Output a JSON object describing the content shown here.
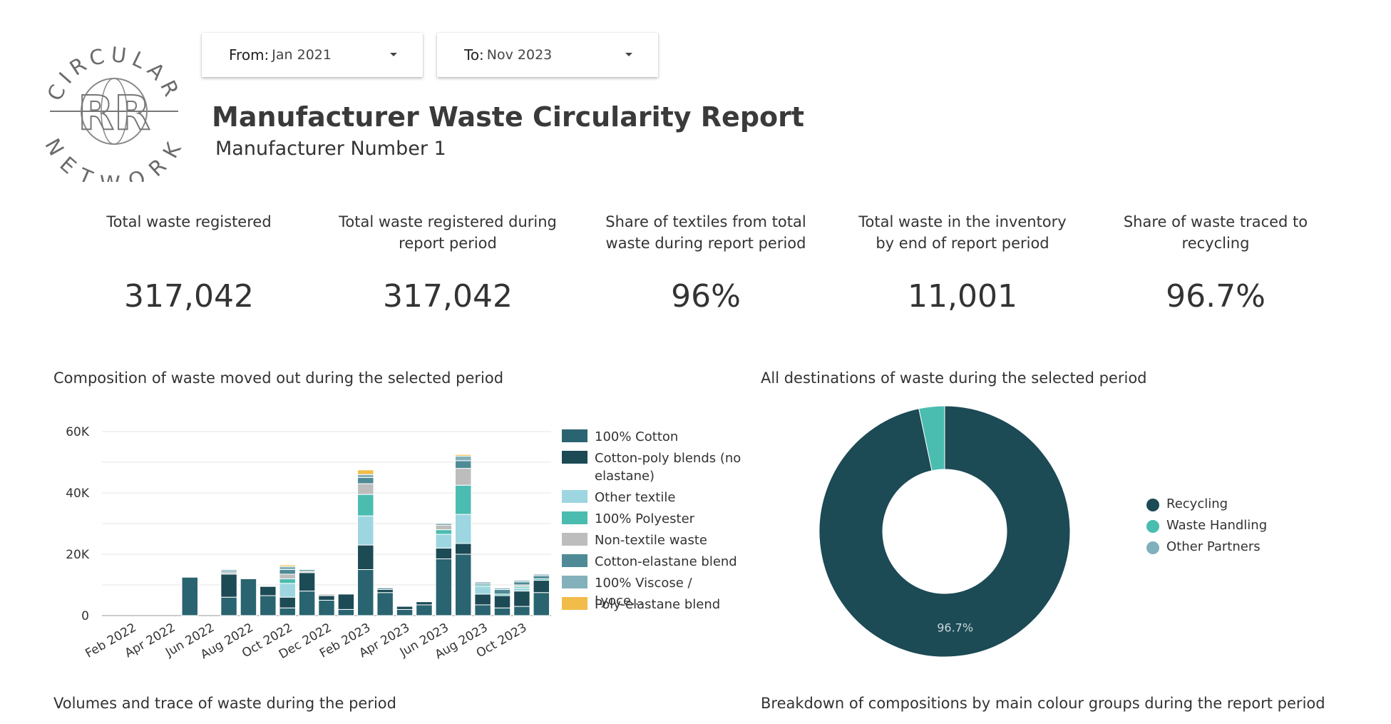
{
  "logo": {
    "top_text": "CIRCULAR",
    "bottom_text": "NETWORK",
    "monogram": "RR"
  },
  "filters": {
    "from": {
      "label": "From:",
      "value": "Jan 2021"
    },
    "to": {
      "label": "To:",
      "value": "Nov 2023"
    }
  },
  "header": {
    "title": "Manufacturer Waste Circularity Report",
    "subtitle": "Manufacturer Number 1"
  },
  "kpis": [
    {
      "label_lines": [
        "Total waste registered"
      ],
      "value": "317,042"
    },
    {
      "label_lines": [
        "Total waste registered during",
        "report period"
      ],
      "value": "317,042"
    },
    {
      "label_lines": [
        "Share of textiles from total",
        "waste during report period"
      ],
      "value": "96%"
    },
    {
      "label_lines": [
        "Total waste in the inventory",
        "by end of report period"
      ],
      "value": "11,001"
    },
    {
      "label_lines": [
        "Share of waste traced to",
        "recycling"
      ],
      "value": "96.7%"
    }
  ],
  "sections": {
    "composition_title": "Composition of waste moved out during the selected period",
    "destinations_title": "All destinations of waste during the selected period",
    "volumes_title": "Volumes and trace of waste during the period",
    "colour_groups_title": "Breakdown of compositions by main colour groups during the report period"
  },
  "colors": {
    "cotton": "#2a6470",
    "cotton_poly": "#1c4a55",
    "other_textile": "#9dd6e0",
    "polyester": "#4bbcb0",
    "non_textile": "#bdbdbd",
    "cotton_elastane": "#4f8b96",
    "viscose": "#83b1bb",
    "poly_elastane": "#f1bc4a",
    "recycling": "#1c4a55",
    "waste_handling": "#4bbcb0",
    "other_partners": "#7fb0bb"
  },
  "chart_data": [
    {
      "type": "bar",
      "stacked": true,
      "x_tick_labels": [
        "Feb 2022",
        "Apr 2022",
        "Jun 2022",
        "Aug 2022",
        "Oct 2022",
        "Dec 2022",
        "Feb 2023",
        "Apr 2023",
        "Jun 2023",
        "Aug 2023",
        "Oct 2023"
      ],
      "categories": [
        "Jan 2022",
        "Feb 2022",
        "Mar 2022",
        "Apr 2022",
        "May 2022",
        "Jun 2022",
        "Jul 2022",
        "Aug 2022",
        "Sep 2022",
        "Oct 2022",
        "Nov 2022",
        "Dec 2022",
        "Jan 2023",
        "Feb 2023",
        "Mar 2023",
        "Apr 2023",
        "May 2023",
        "Jun 2023",
        "Jul 2023",
        "Aug 2023",
        "Sep 2023",
        "Oct 2023",
        "Nov 2023"
      ],
      "y_tick_labels": [
        "0",
        "20K",
        "40K",
        "60K"
      ],
      "ylim": [
        0,
        60000
      ],
      "grid": true,
      "legend_position": "right",
      "series": [
        {
          "name": "100% Cotton",
          "color_key": "cotton",
          "values": [
            0,
            0,
            0,
            0,
            12500,
            0,
            6000,
            12000,
            6500,
            2500,
            8000,
            5000,
            2000,
            15000,
            7500,
            2000,
            3500,
            18500,
            20000,
            3500,
            2500,
            3000,
            7500
          ]
        },
        {
          "name": "Cotton-poly blends (no elastane)",
          "color_key": "cotton_poly",
          "values": [
            0,
            0,
            0,
            0,
            0,
            0,
            7500,
            0,
            3000,
            3500,
            6000,
            1500,
            5000,
            8000,
            1000,
            1000,
            1000,
            3500,
            3500,
            3500,
            4000,
            5000,
            4000
          ]
        },
        {
          "name": "Other textile",
          "color_key": "other_textile",
          "values": [
            0,
            0,
            0,
            0,
            0,
            0,
            0,
            0,
            0,
            4500,
            0,
            0,
            0,
            9500,
            0,
            0,
            0,
            4500,
            9500,
            2500,
            0,
            1000,
            0
          ]
        },
        {
          "name": "100% Polyester",
          "color_key": "polyester",
          "values": [
            0,
            0,
            0,
            0,
            0,
            0,
            0,
            0,
            0,
            1500,
            0,
            0,
            0,
            7000,
            0,
            0,
            0,
            1500,
            9500,
            500,
            500,
            500,
            500
          ]
        },
        {
          "name": "Non-textile waste",
          "color_key": "non_textile",
          "values": [
            0,
            0,
            0,
            0,
            0,
            0,
            500,
            0,
            0,
            1500,
            500,
            500,
            0,
            3500,
            0,
            0,
            0,
            1500,
            5500,
            0,
            0,
            500,
            0
          ]
        },
        {
          "name": "Cotton-elastane blend",
          "color_key": "cotton_elastane",
          "values": [
            0,
            0,
            0,
            0,
            0,
            0,
            500,
            0,
            0,
            1500,
            500,
            0,
            0,
            2000,
            500,
            0,
            0,
            500,
            2500,
            500,
            1500,
            1000,
            1000
          ]
        },
        {
          "name": "100% Viscose / Lyoce...",
          "color_key": "viscose",
          "values": [
            0,
            0,
            0,
            0,
            0,
            0,
            500,
            0,
            0,
            1000,
            0,
            0,
            0,
            1000,
            0,
            0,
            0,
            0,
            1500,
            500,
            500,
            500,
            500
          ]
        },
        {
          "name": "Poly-elastane blend",
          "color_key": "poly_elastane",
          "values": [
            0,
            0,
            0,
            0,
            0,
            0,
            0,
            0,
            0,
            500,
            0,
            0,
            0,
            1500,
            0,
            0,
            0,
            0,
            500,
            0,
            0,
            0,
            0
          ]
        }
      ]
    },
    {
      "type": "pie",
      "donut": true,
      "legend_position": "right",
      "slices": [
        {
          "name": "Recycling",
          "value": 96.7,
          "color_key": "recycling",
          "label": "96.7%"
        },
        {
          "name": "Waste Handling",
          "value": 3.3,
          "color_key": "waste_handling",
          "label": ""
        },
        {
          "name": "Other Partners",
          "value": 0,
          "color_key": "other_partners",
          "label": ""
        }
      ]
    }
  ]
}
